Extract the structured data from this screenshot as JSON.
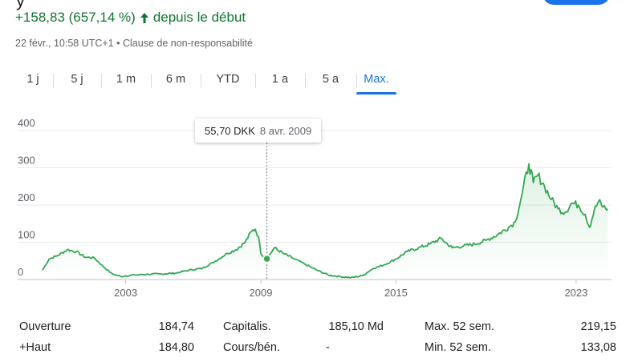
{
  "header": {
    "change_text": "+158,83 (657,14 %)",
    "change_suffix": "depuis le début",
    "timestamp": "22 févr., 10:58 UTC+1",
    "disclaimer": "Clause de non-responsabilité",
    "separator": "•"
  },
  "tabs": [
    {
      "label": "1 j",
      "active": false
    },
    {
      "label": "5 j",
      "active": false
    },
    {
      "label": "1 m",
      "active": false
    },
    {
      "label": "6 m",
      "active": false
    },
    {
      "label": "YTD",
      "active": false
    },
    {
      "label": "1 a",
      "active": false
    },
    {
      "label": "5 a",
      "active": false
    },
    {
      "label": "Max.",
      "active": true
    }
  ],
  "tooltip": {
    "price": "55,70 DKK",
    "date": "8 avr. 2009"
  },
  "colors": {
    "line": "#34a853",
    "positive": "#137333",
    "accent": "#1a73e8",
    "grid": "#e8eaed"
  },
  "chart_data": {
    "type": "line",
    "currency": "DKK",
    "ylim": [
      0,
      400
    ],
    "y_ticks": [
      "0",
      "100",
      "200",
      "300",
      "400"
    ],
    "x_ticks": [
      {
        "label": "2003",
        "year": 2003
      },
      {
        "label": "2009",
        "year": 2009
      },
      {
        "label": "2015",
        "year": 2015
      },
      {
        "label": "2023",
        "year": 2023
      }
    ],
    "xlim": [
      1999.2,
      2024.5
    ],
    "hover": {
      "x": 2009.27,
      "y": 55.7
    },
    "series": [
      {
        "x": [
          1999.3,
          1999.6,
          2000.0,
          2000.4,
          2000.8,
          2001.2,
          2001.6,
          2002.0,
          2002.4,
          2002.8,
          2003.0,
          2003.4,
          2004.0,
          2004.6,
          2005.2,
          2005.8,
          2006.4,
          2007.0,
          2007.5,
          2007.9,
          2008.3,
          2008.6,
          2008.75,
          2008.9,
          2009.0,
          2009.27,
          2009.6,
          2010.0,
          2010.5,
          2011.0,
          2011.5,
          2012.0,
          2012.5,
          2013.0,
          2013.5,
          2014.0,
          2014.5,
          2015.0,
          2015.5,
          2016.0,
          2016.5,
          2017.0,
          2017.5,
          2018.0,
          2018.5,
          2019.0,
          2019.5,
          2020.0,
          2020.3,
          2020.6,
          2020.9,
          2021.1,
          2021.3,
          2021.6,
          2021.9,
          2022.2,
          2022.5,
          2022.8,
          2023.1,
          2023.4,
          2023.6,
          2023.8,
          2024.0,
          2024.2,
          2024.4
        ],
        "y": [
          25,
          55,
          65,
          80,
          75,
          60,
          58,
          35,
          15,
          8,
          10,
          12,
          14,
          15,
          17,
          25,
          30,
          50,
          70,
          80,
          100,
          130,
          135,
          115,
          70,
          55.7,
          85,
          70,
          55,
          40,
          25,
          12,
          8,
          5,
          10,
          30,
          40,
          55,
          75,
          85,
          95,
          110,
          85,
          90,
          95,
          105,
          120,
          140,
          155,
          230,
          310,
          260,
          280,
          250,
          215,
          190,
          180,
          205,
          200,
          175,
          140,
          185,
          210,
          195,
          190
        ]
      }
    ]
  },
  "stats": [
    {
      "label1": "Ouverture",
      "value1": "184,74",
      "label2": "Capitalis.",
      "value2": "185,10 Md",
      "label3": "Max. 52 sem.",
      "value3": "219,15"
    },
    {
      "label1": "+Haut",
      "value1": "184,80",
      "label2": "Cours/bén.",
      "value2": "-",
      "label3": "Min. 52 sem.",
      "value3": "133,08"
    }
  ]
}
